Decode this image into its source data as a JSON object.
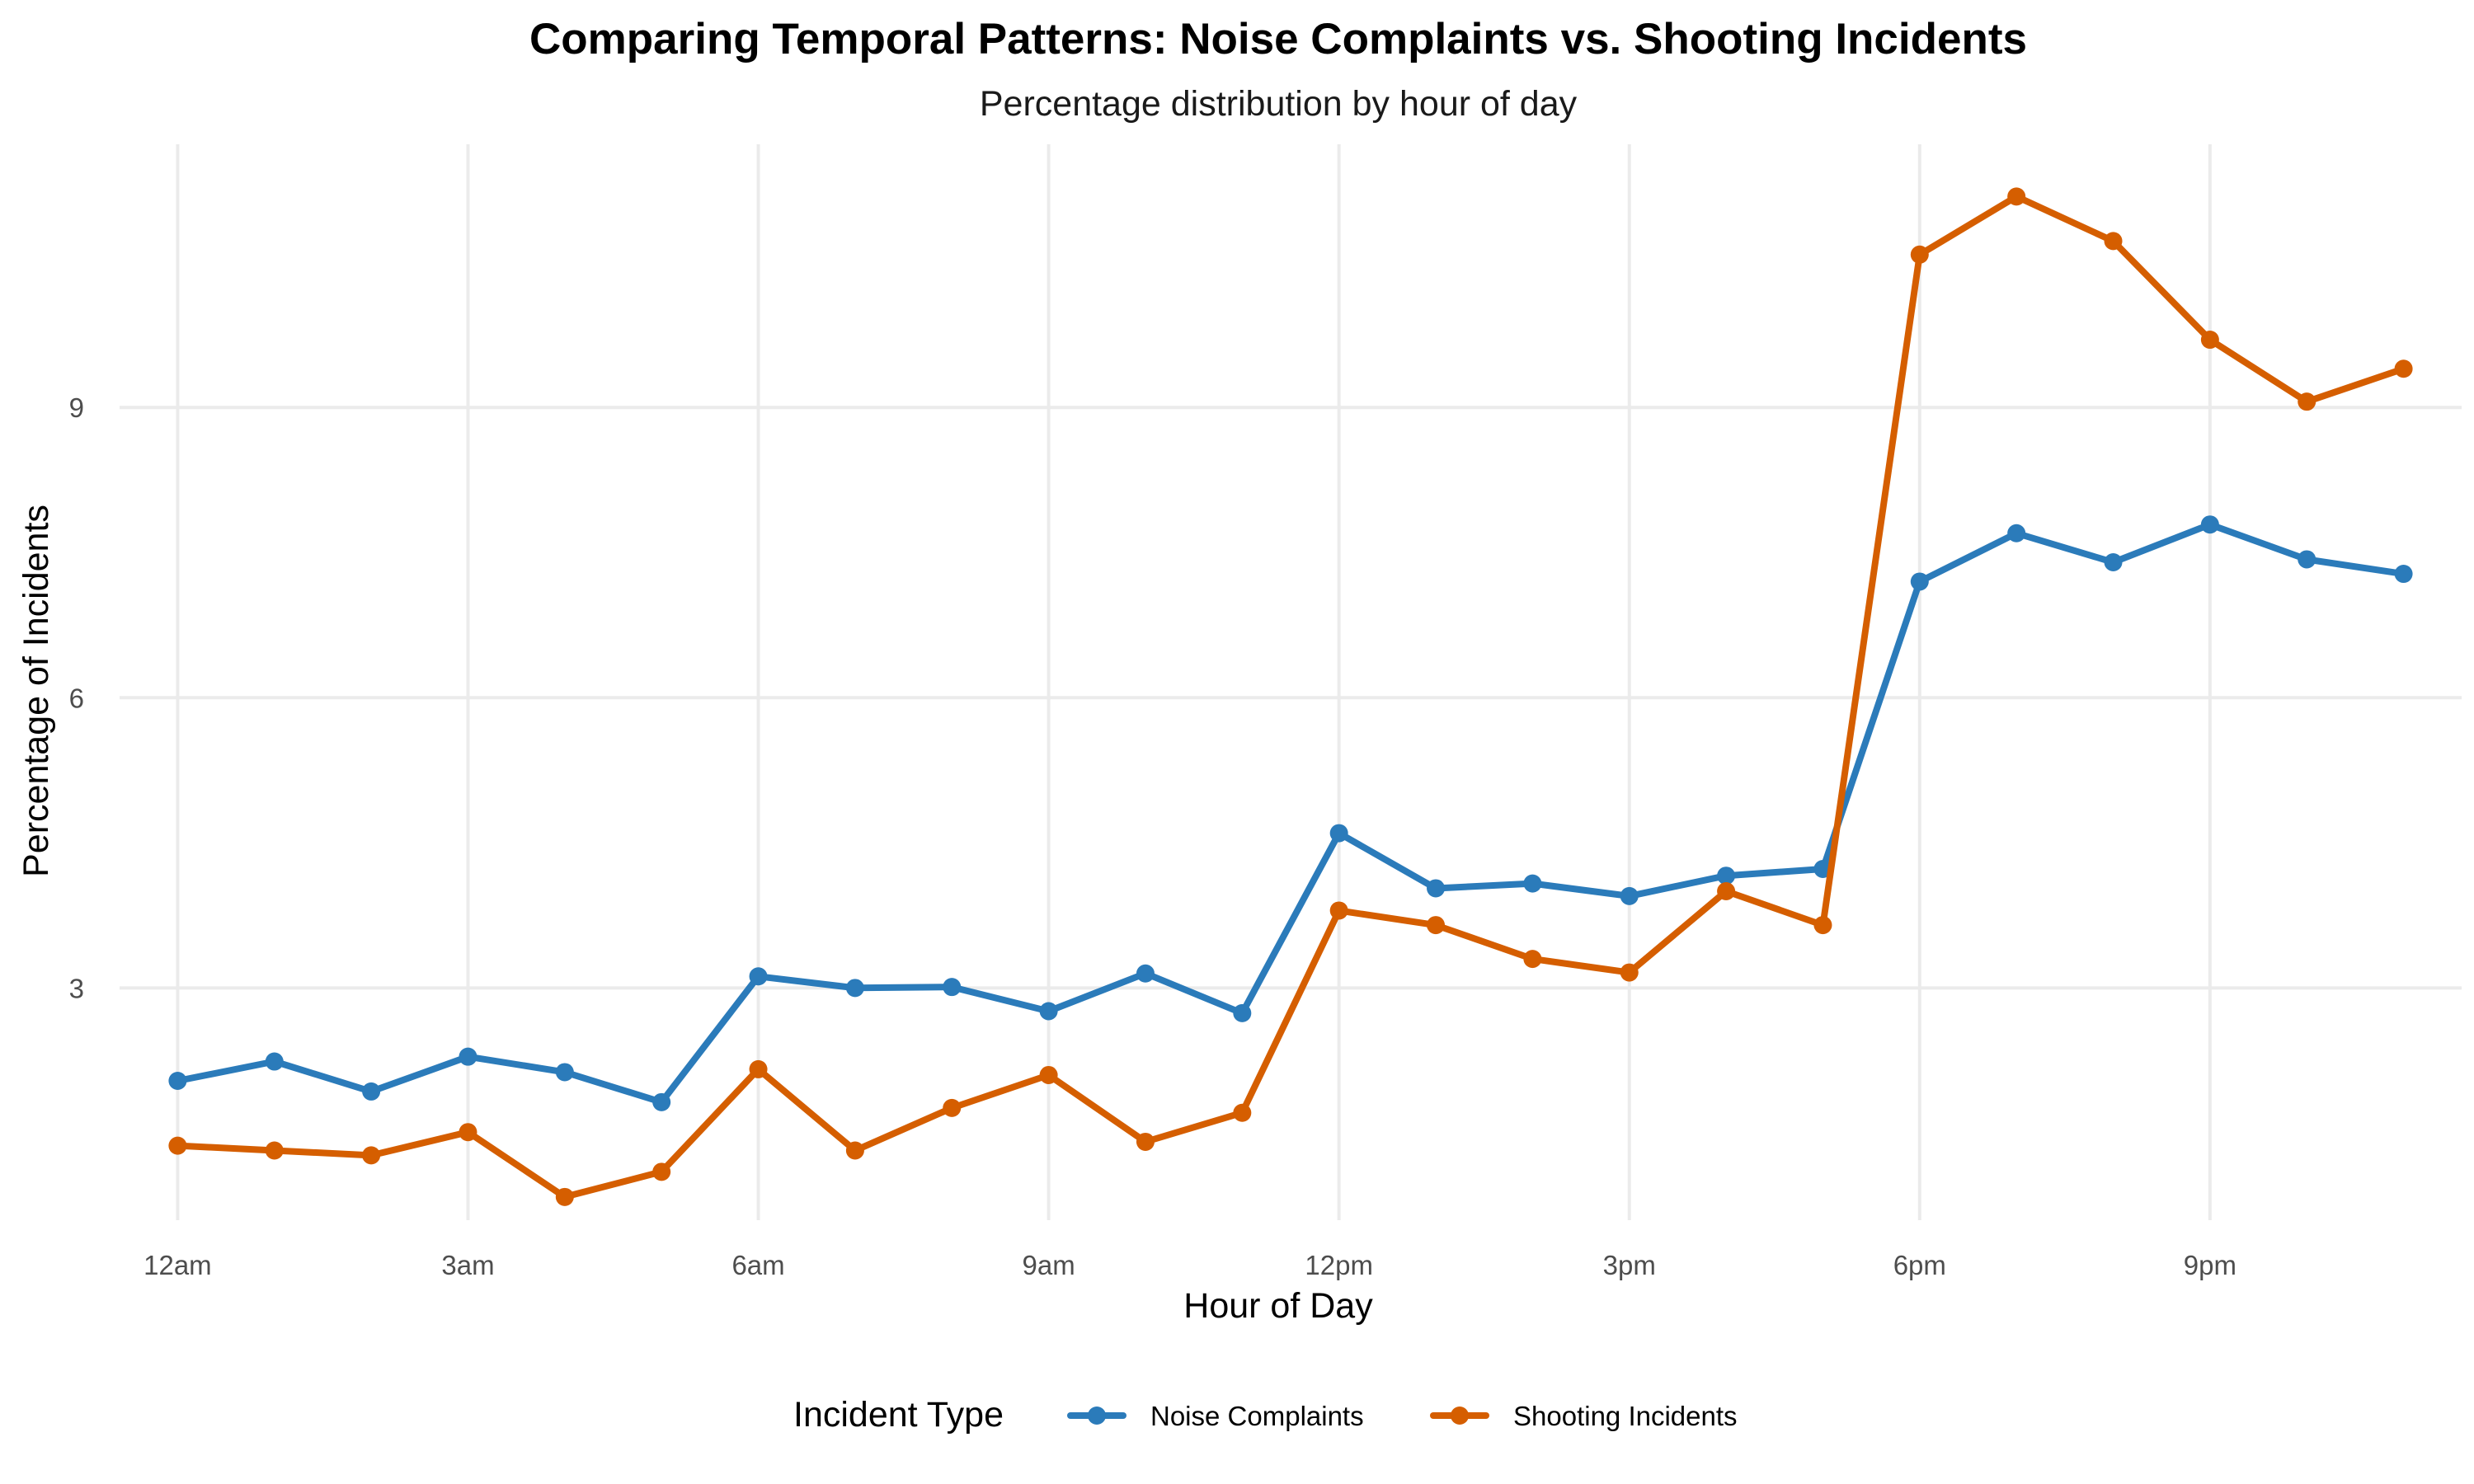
{
  "chart_data": {
    "type": "line",
    "title": "Comparing Temporal Patterns: Noise Complaints vs. Shooting Incidents",
    "subtitle": "Percentage distribution by hour of day",
    "xlabel": "Hour of Day",
    "ylabel": "Percentage of Incidents",
    "x": [
      0,
      1,
      2,
      3,
      4,
      5,
      6,
      7,
      8,
      9,
      10,
      11,
      12,
      13,
      14,
      15,
      16,
      17,
      18,
      19,
      20,
      21,
      22,
      23
    ],
    "x_ticks": [
      0,
      3,
      6,
      9,
      12,
      15,
      18,
      21
    ],
    "x_tick_labels": [
      "12am",
      "3am",
      "6am",
      "9am",
      "12pm",
      "3pm",
      "6pm",
      "9pm"
    ],
    "xlim": [
      -0.6,
      23.6
    ],
    "y_ticks": [
      3,
      6,
      9
    ],
    "y_tick_labels": [
      "3",
      "6",
      "9"
    ],
    "ylim": [
      0.6,
      11.72
    ],
    "grid": true,
    "legend": {
      "title": "Incident Type",
      "position": "bottom"
    },
    "series": [
      {
        "name": "Noise Complaints",
        "color": "#2b7bba",
        "values": [
          2.04,
          2.24,
          1.93,
          2.29,
          2.13,
          1.82,
          3.12,
          3.0,
          3.01,
          2.76,
          3.15,
          2.74,
          4.6,
          4.03,
          4.08,
          3.95,
          4.16,
          4.23,
          7.2,
          7.7,
          7.4,
          7.79,
          7.43,
          7.28
        ]
      },
      {
        "name": "Shooting Incidents",
        "color": "#d55e00",
        "values": [
          1.37,
          1.32,
          1.27,
          1.51,
          0.84,
          1.1,
          2.16,
          1.32,
          1.76,
          2.1,
          1.41,
          1.71,
          3.8,
          3.65,
          3.3,
          3.16,
          4.0,
          3.65,
          10.58,
          11.18,
          10.72,
          9.7,
          9.06,
          9.4
        ]
      }
    ]
  }
}
